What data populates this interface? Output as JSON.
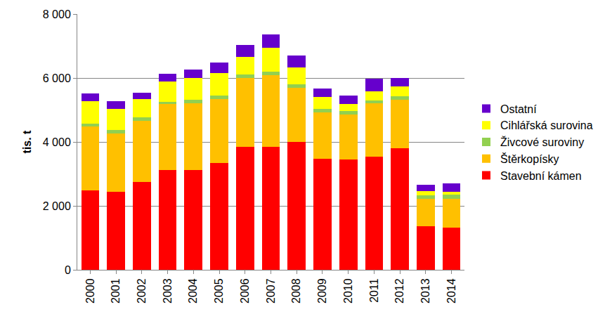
{
  "chart_data": {
    "type": "bar",
    "stacked": true,
    "grid": true,
    "legend": "right",
    "y_label": "tis. t",
    "categories": [
      "2000",
      "2001",
      "2002",
      "2003",
      "2004",
      "2005",
      "2006",
      "2007",
      "2008",
      "2009",
      "2010",
      "2011",
      "2012",
      "2013",
      "2014"
    ],
    "ylim": [
      0,
      8000
    ],
    "yticks": [
      0,
      {
        "value": 2000,
        "label": "2 000"
      },
      {
        "value": 4000,
        "label": "4 000"
      },
      {
        "value": 6000,
        "label": "6 000"
      },
      {
        "value": 8000,
        "label": "8 000"
      }
    ],
    "series": [
      {
        "name": "Stavební kámen",
        "color": "#ff0000",
        "values": [
          2480,
          2450,
          2740,
          3130,
          3130,
          3330,
          3850,
          3840,
          3990,
          3470,
          3460,
          3540,
          3810,
          1370,
          1310
        ]
      },
      {
        "name": "Štěrkopísky",
        "color": "#ffc000",
        "values": [
          2000,
          1820,
          1920,
          2050,
          2080,
          2020,
          2160,
          2240,
          1700,
          1450,
          1400,
          1670,
          1500,
          850,
          920
        ]
      },
      {
        "name": "Živcové suroviny",
        "color": "#92d050",
        "values": [
          100,
          100,
          110,
          80,
          110,
          100,
          90,
          120,
          110,
          120,
          110,
          90,
          120,
          110,
          120
        ]
      },
      {
        "name": "Cihlářská surovina",
        "color": "#ffff00",
        "values": [
          700,
          660,
          580,
          630,
          670,
          700,
          550,
          750,
          540,
          370,
          210,
          290,
          310,
          140,
          100
        ]
      },
      {
        "name": "Ostatní",
        "color": "#6600cc",
        "values": [
          240,
          250,
          190,
          240,
          270,
          330,
          380,
          410,
          370,
          250,
          270,
          380,
          250,
          180,
          250
        ]
      }
    ]
  }
}
